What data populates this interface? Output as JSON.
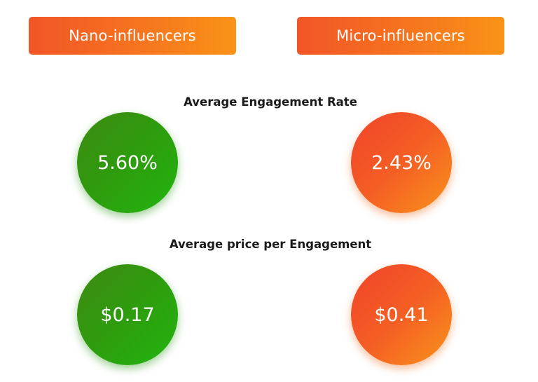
{
  "header": {
    "left_label": "Nano-influencers",
    "right_label": "Micro-influencers"
  },
  "metrics": [
    {
      "title": "Average Engagement Rate",
      "nano_value": "5.60%",
      "micro_value": "2.43%"
    },
    {
      "title": "Average price per Engagement",
      "nano_value": "$0.17",
      "micro_value": "$0.41"
    }
  ],
  "colors": {
    "nano": "#2e9a10",
    "micro": "#f36a22",
    "header_start": "#f15527",
    "header_end": "#f99317",
    "heading_text": "#1b1b1b"
  }
}
